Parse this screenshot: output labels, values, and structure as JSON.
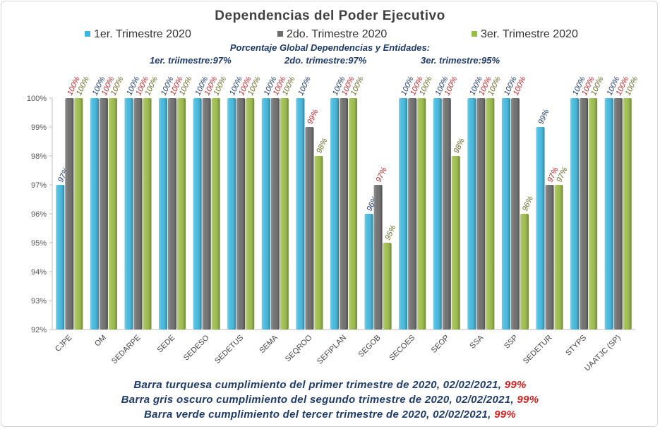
{
  "chart_data": {
    "type": "bar",
    "title": "Dependencias del Poder Ejecutivo",
    "categories": [
      "CJPE",
      "OM",
      "SEDARPE",
      "SEDE",
      "SEDESO",
      "SEDETUS",
      "SEMA",
      "SEQROO",
      "SEFIPLAN",
      "SEGOB",
      "SECOES",
      "SEOP",
      "SSA",
      "SSP",
      "SEDETUR",
      "STYPS",
      "UAATJC (SP)"
    ],
    "series": [
      {
        "name": "1er. Trimestre 2020",
        "color": "#3fb7dd",
        "label_color": "#1f3b6a",
        "values": [
          97,
          100,
          100,
          100,
          100,
          100,
          100,
          100,
          100,
          96,
          100,
          100,
          100,
          100,
          99,
          100,
          100
        ]
      },
      {
        "name": "2do. Trimestre 2020",
        "color": "#6b6b6b",
        "label_color": "#c0282d",
        "values": [
          100,
          100,
          100,
          100,
          100,
          100,
          100,
          99,
          100,
          97,
          100,
          100,
          100,
          100,
          97,
          100,
          100
        ]
      },
      {
        "name": "3er. Trimestre 2020",
        "color": "#9bbb47",
        "label_color": "#6b6b2a",
        "values": [
          100,
          100,
          100,
          100,
          100,
          100,
          100,
          98,
          100,
          95,
          100,
          98,
          100,
          96,
          97,
          100,
          100
        ]
      }
    ],
    "value_suffix": "%",
    "ylim": [
      92,
      100
    ],
    "yticks": [
      "92%",
      "93%",
      "94%",
      "95%",
      "96%",
      "97%",
      "98%",
      "99%",
      "100%"
    ],
    "grid": false,
    "legend_position": "top"
  },
  "global": {
    "title": "Porcentaje Global Dependencias y Entidades:",
    "q1": "1er. triimestre:97%",
    "q2": "2do. trimestre:97%",
    "q3": "3er. trimestre:95%"
  },
  "footer": [
    {
      "text": "Barra turquesa cumplimiento del primer trimestre de 2020, 02/02/2021, ",
      "pct": "99%"
    },
    {
      "text": "Barra gris oscuro cumplimiento del segundo trimestre de 2020, 02/02/2021, ",
      "pct": "99%"
    },
    {
      "text": "Barra verde cumplimiento del tercer trimestre de 2020, 02/02/2021, ",
      "pct": "99%"
    }
  ]
}
